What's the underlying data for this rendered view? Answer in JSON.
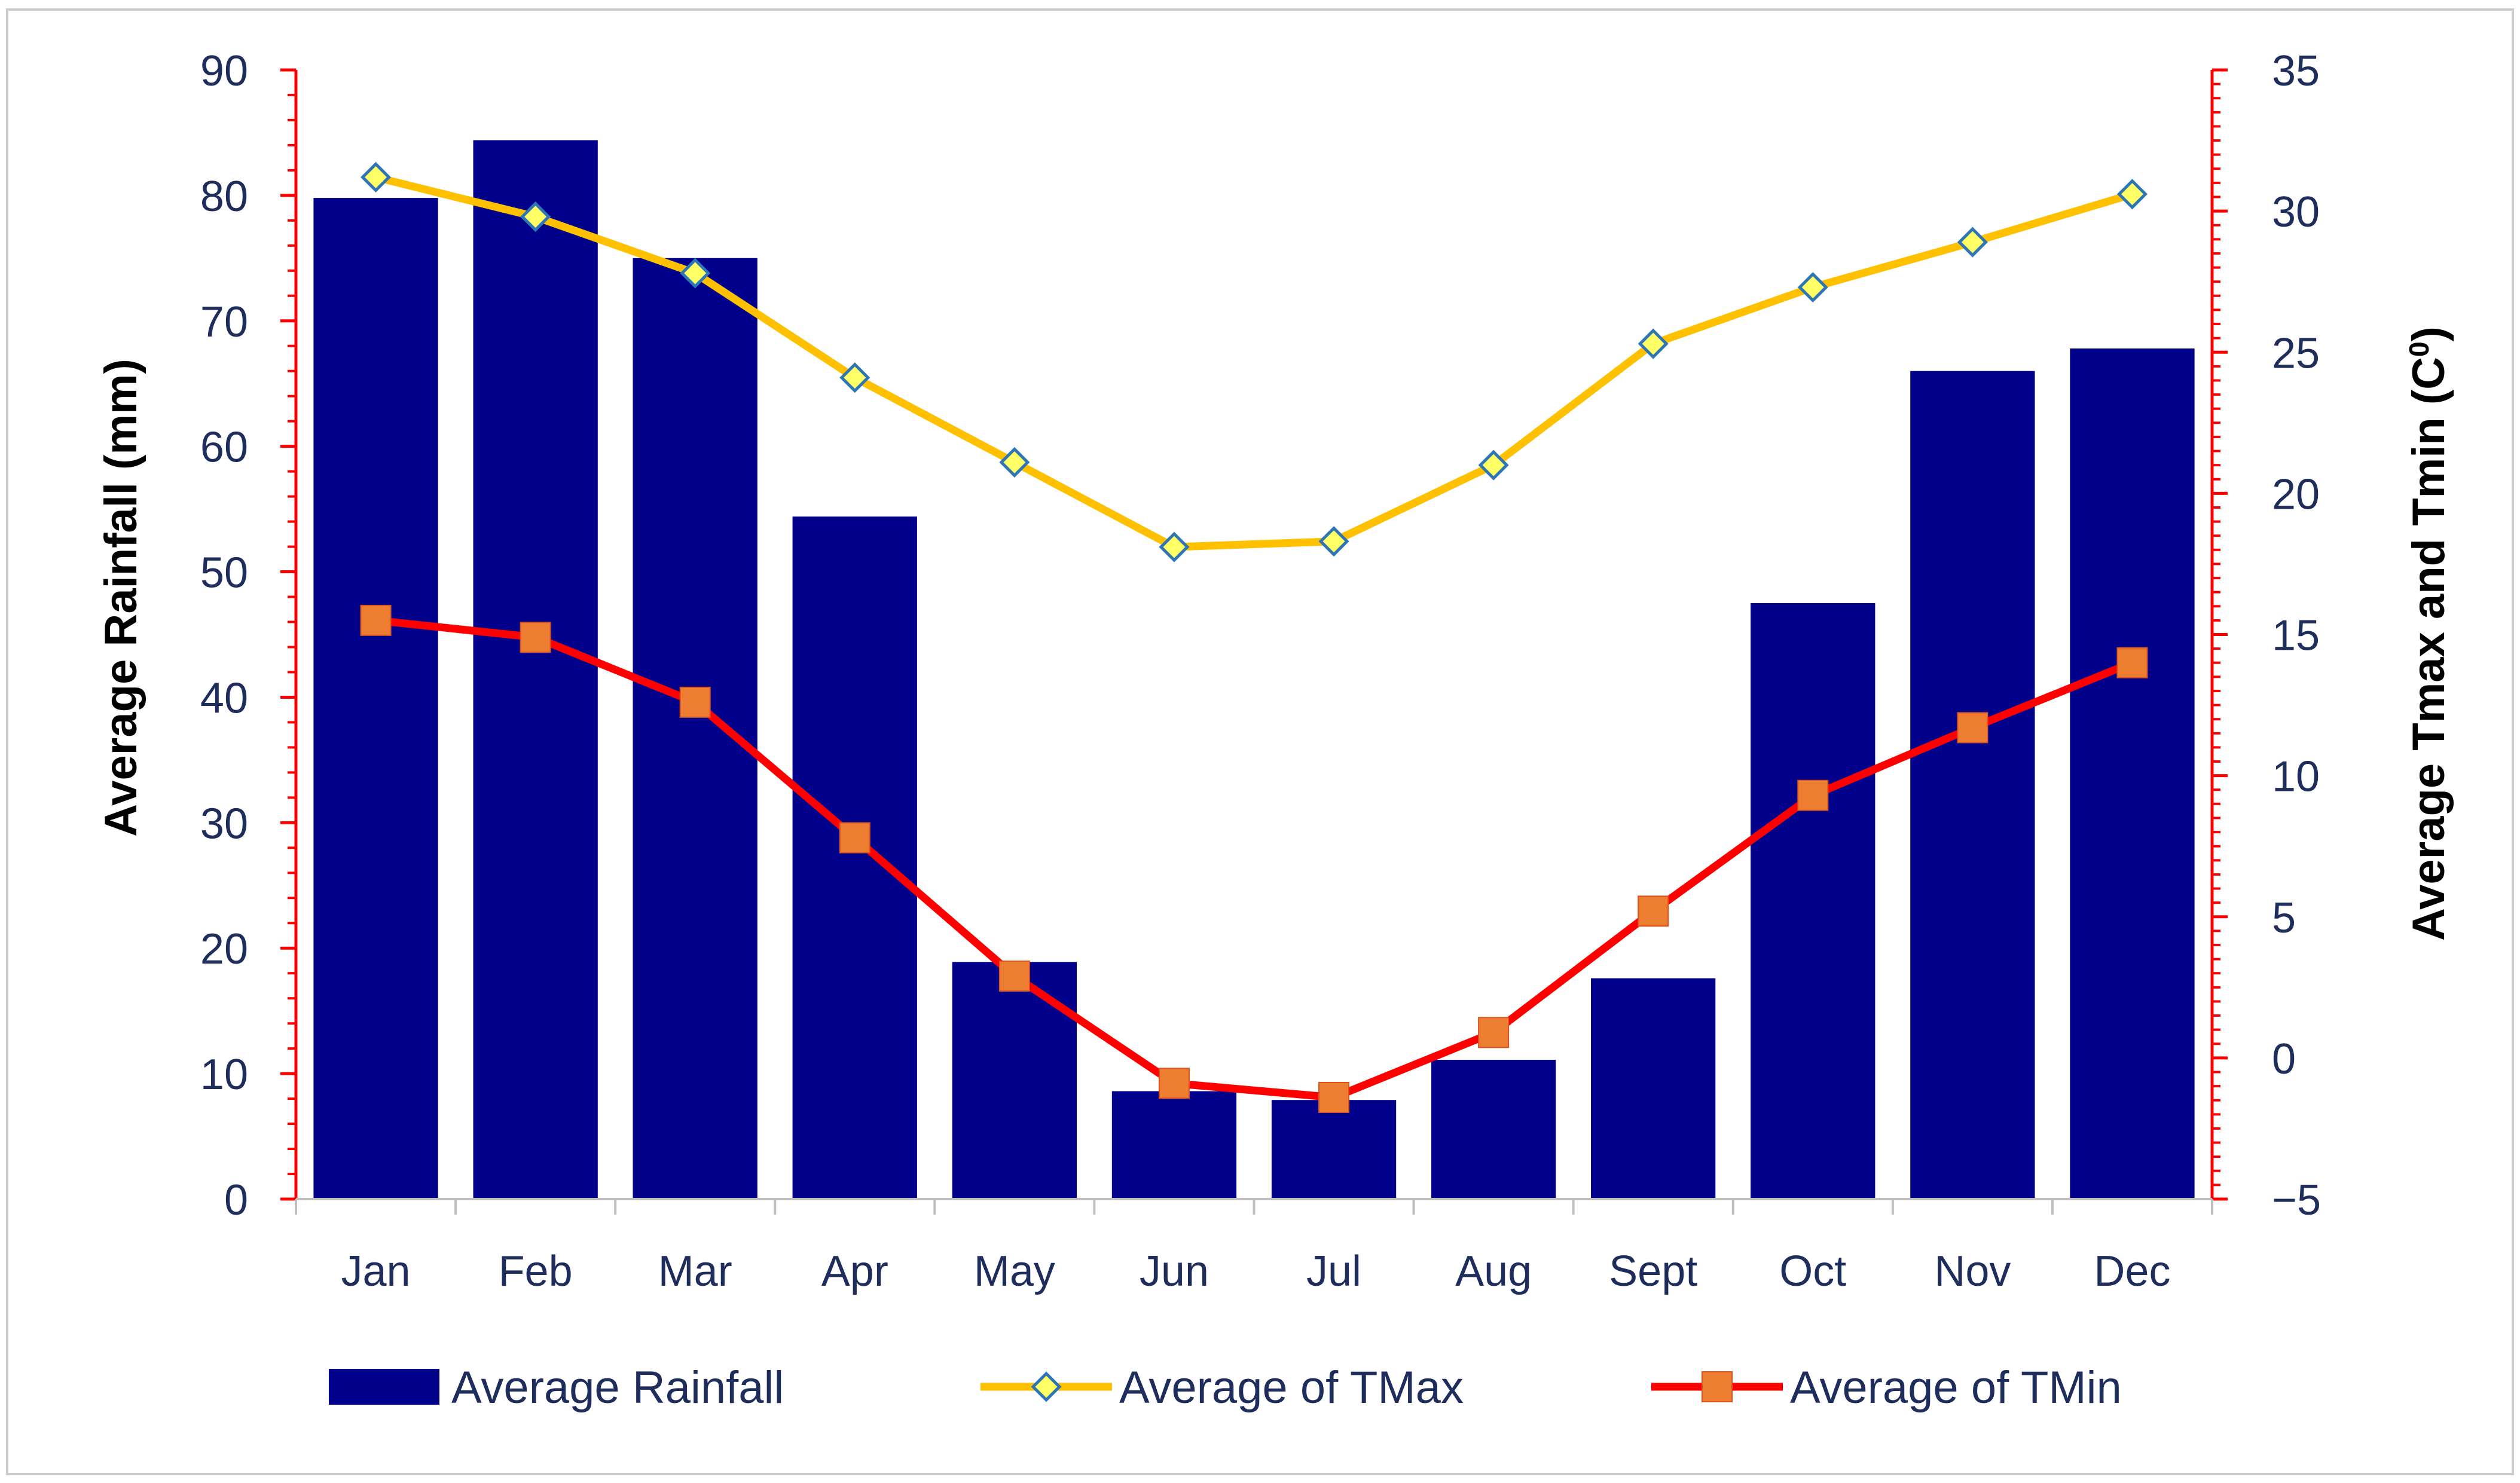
{
  "chart_data": {
    "type": "bar+line (dual axis)",
    "categories": [
      "Jan",
      "Feb",
      "Mar",
      "Apr",
      "May",
      "Jun",
      "Jul",
      "Aug",
      "Sept",
      "Oct",
      "Nov",
      "Dec"
    ],
    "series": [
      {
        "name": "Average Rainfall",
        "kind": "bar",
        "axis": "left",
        "color": "#00008B",
        "values": [
          79.8,
          84.4,
          75.0,
          54.4,
          18.9,
          8.6,
          7.9,
          11.1,
          17.6,
          47.5,
          66.0,
          67.8
        ]
      },
      {
        "name": "Average of TMax",
        "kind": "line",
        "axis": "right",
        "color": "#FFC000",
        "marker": "diamond",
        "marker_color": "#FFFF66",
        "marker_edge": "#2E75B6",
        "values": [
          31.2,
          29.8,
          27.8,
          24.1,
          21.1,
          18.1,
          18.3,
          21.0,
          25.3,
          27.3,
          28.9,
          30.6
        ]
      },
      {
        "name": "Average of TMin",
        "kind": "line",
        "axis": "right",
        "color": "#FF0000",
        "marker": "square",
        "marker_color": "#ED7D31",
        "values": [
          15.5,
          14.9,
          12.6,
          7.8,
          2.9,
          -0.9,
          -1.4,
          0.9,
          5.2,
          9.3,
          11.7,
          14.0
        ]
      }
    ],
    "left_axis": {
      "label": "Average Rainfall (mm)",
      "ylim": [
        0,
        90
      ],
      "ticks": [
        "0",
        "10",
        "20",
        "30",
        "40",
        "50",
        "60",
        "70",
        "80",
        "90"
      ],
      "color": "#FF0000",
      "tick_label_color": "#1F2D5C"
    },
    "right_axis": {
      "label": "Average Tmax and Tmin (C",
      "label_superscript": "0",
      "label_close": ")",
      "ylim": [
        -5,
        35
      ],
      "ticks": [
        "−5",
        "0",
        "5",
        "10",
        "15",
        "20",
        "25",
        "30",
        "35"
      ],
      "color": "#FF0000",
      "tick_label_color": "#1F2D5C"
    },
    "legend": {
      "position": "bottom",
      "entries": [
        "Average Rainfall",
        "Average of TMax",
        "Average of TMin"
      ]
    },
    "grid": false
  }
}
